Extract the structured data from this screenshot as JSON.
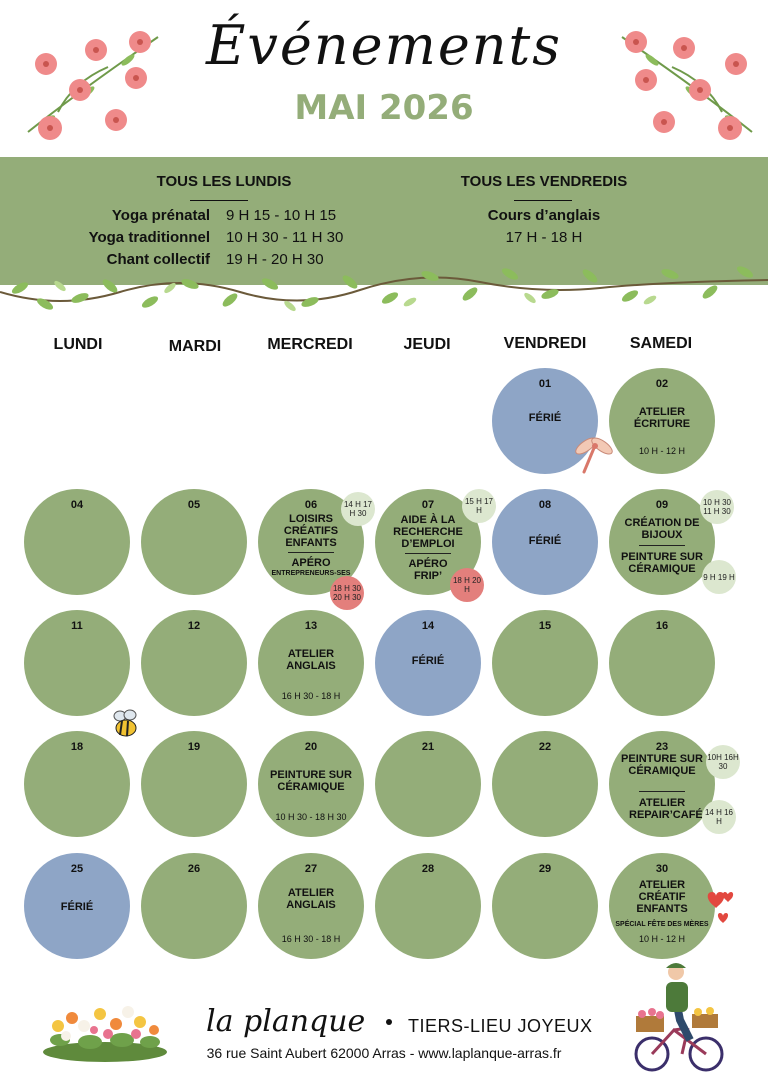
{
  "header": {
    "title": "Événements",
    "subtitle": "MAI 2026"
  },
  "banner": {
    "monday": {
      "heading": "TOUS LES LUNDIS",
      "rows": [
        {
          "label": "Yoga prénatal",
          "time": "9 H 15 - 10 H 15"
        },
        {
          "label": "Yoga traditionnel",
          "time": "10 H 30 - 11 H 30"
        },
        {
          "label": "Chant collectif",
          "time": "19 H - 20 H 30"
        }
      ]
    },
    "friday": {
      "heading": "TOUS LES VENDREDIS",
      "activity": "Cours d’anglais",
      "time": "17 H - 18 H"
    }
  },
  "days": [
    "LUNDI",
    "MARDI",
    "MERCREDI",
    "JEUDI",
    "VENDREDI",
    "SAMEDI"
  ],
  "calendar": {
    "d01": {
      "num": "01",
      "event": "FÉRIÉ"
    },
    "d02": {
      "num": "02",
      "event": "ATELIER ÉCRITURE",
      "time": "10 H - 12 H"
    },
    "d04": {
      "num": "04"
    },
    "d05": {
      "num": "05"
    },
    "d06": {
      "num": "06",
      "event1": "LOISIRS CRÉATIFS ENFANTS",
      "badge1": "14 H 17 H 30",
      "event2": "APÉRO",
      "event2_sub": "ENTREPRENEURS-SES",
      "badge2": "18 H 30 20 H 30"
    },
    "d07": {
      "num": "07",
      "event1": "AIDE À LA RECHERCHE D’EMPLOI",
      "badge1": "15 H 17 H",
      "event2": "APÉRO FRIP’",
      "badge2": "18 H 20 H"
    },
    "d08": {
      "num": "08",
      "event": "FÉRIÉ"
    },
    "d09": {
      "num": "09",
      "event1": "CRÉATION DE BIJOUX",
      "badge1": "10 H 30 11 H 30",
      "event2": "PEINTURE SUR CÉRAMIQUE",
      "badge2": "9 H 19 H"
    },
    "d11": {
      "num": "11"
    },
    "d12": {
      "num": "12"
    },
    "d13": {
      "num": "13",
      "event": "ATELIER ANGLAIS",
      "time": "16 H 30 - 18 H"
    },
    "d14": {
      "num": "14",
      "event": "FÉRIÉ"
    },
    "d15": {
      "num": "15"
    },
    "d16": {
      "num": "16"
    },
    "d18": {
      "num": "18"
    },
    "d19": {
      "num": "19"
    },
    "d20": {
      "num": "20",
      "event": "PEINTURE SUR CÉRAMIQUE",
      "time": "10 H 30 - 18 H 30"
    },
    "d21": {
      "num": "21"
    },
    "d22": {
      "num": "22"
    },
    "d23": {
      "num": "23",
      "event1": "PEINTURE SUR CÉRAMIQUE",
      "badge1": "10H 16H 30",
      "event2": "ATELIER REPAIR’CAFÉ",
      "badge2": "14 H 16 H"
    },
    "d25": {
      "num": "25",
      "event": "FÉRIÉ"
    },
    "d26": {
      "num": "26"
    },
    "d27": {
      "num": "27",
      "event": "ATELIER ANGLAIS",
      "time": "16 H 30 - 18 H"
    },
    "d28": {
      "num": "28"
    },
    "d29": {
      "num": "29"
    },
    "d30": {
      "num": "30",
      "event": "ATELIER CRÉATIF ENFANTS",
      "sub": "SPÉCIAL FÊTE DES MÈRES",
      "time": "10 H - 12 H"
    }
  },
  "footer": {
    "brand": "la planque",
    "tagline": "TIERS-LIEU JOYEUX",
    "address": "36 rue Saint Aubert 62000 Arras - www.laplanque-arras.fr"
  },
  "colors": {
    "green": "#94ad79",
    "blue": "#8ea5c6",
    "pink": "#e37f7c",
    "light_green": "#dce7cf"
  },
  "icons": [
    "flower-icon",
    "vine-icon",
    "dragonfly-icon",
    "bee-icon",
    "heart-icon",
    "flower-bed-icon",
    "cyclist-icon"
  ]
}
